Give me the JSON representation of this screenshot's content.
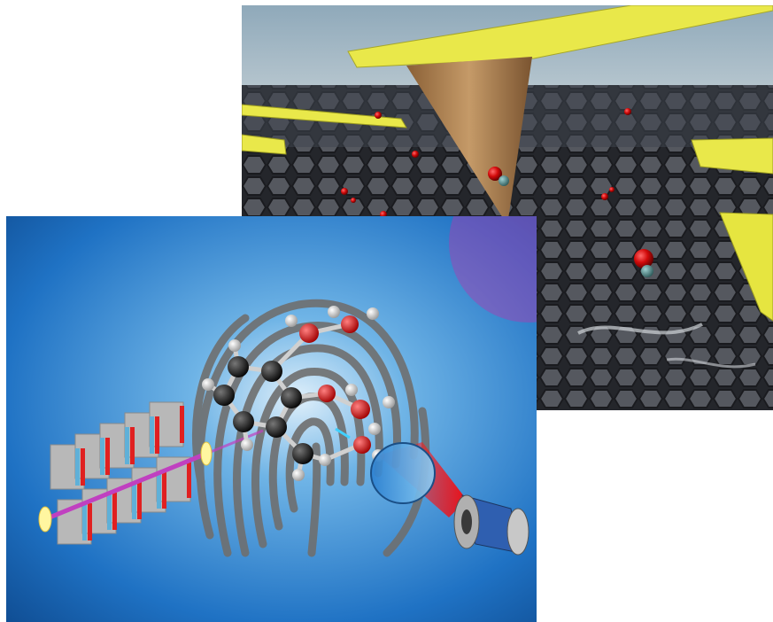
{
  "figures": [
    {
      "id": "back",
      "subject": "sharp-tip-over-graphene-lattice-with-water-molecules",
      "colors": {
        "sky": "#9fb6c4",
        "lattice": "#2b2d33",
        "tip": "#b98a5a",
        "cantilever": "#e9e84a",
        "molecule": "#d20a0a"
      }
    },
    {
      "id": "front",
      "subject": "molecular-fingerprint-with-laser-and-spectrometer",
      "colors": {
        "water": "#1f72c4",
        "fingerprint": "#6f6f6f",
        "carbon": "#111111",
        "oxygen": "#d81414",
        "hydrogen": "#d9d9d9",
        "beam": "#b03ab0"
      }
    }
  ]
}
